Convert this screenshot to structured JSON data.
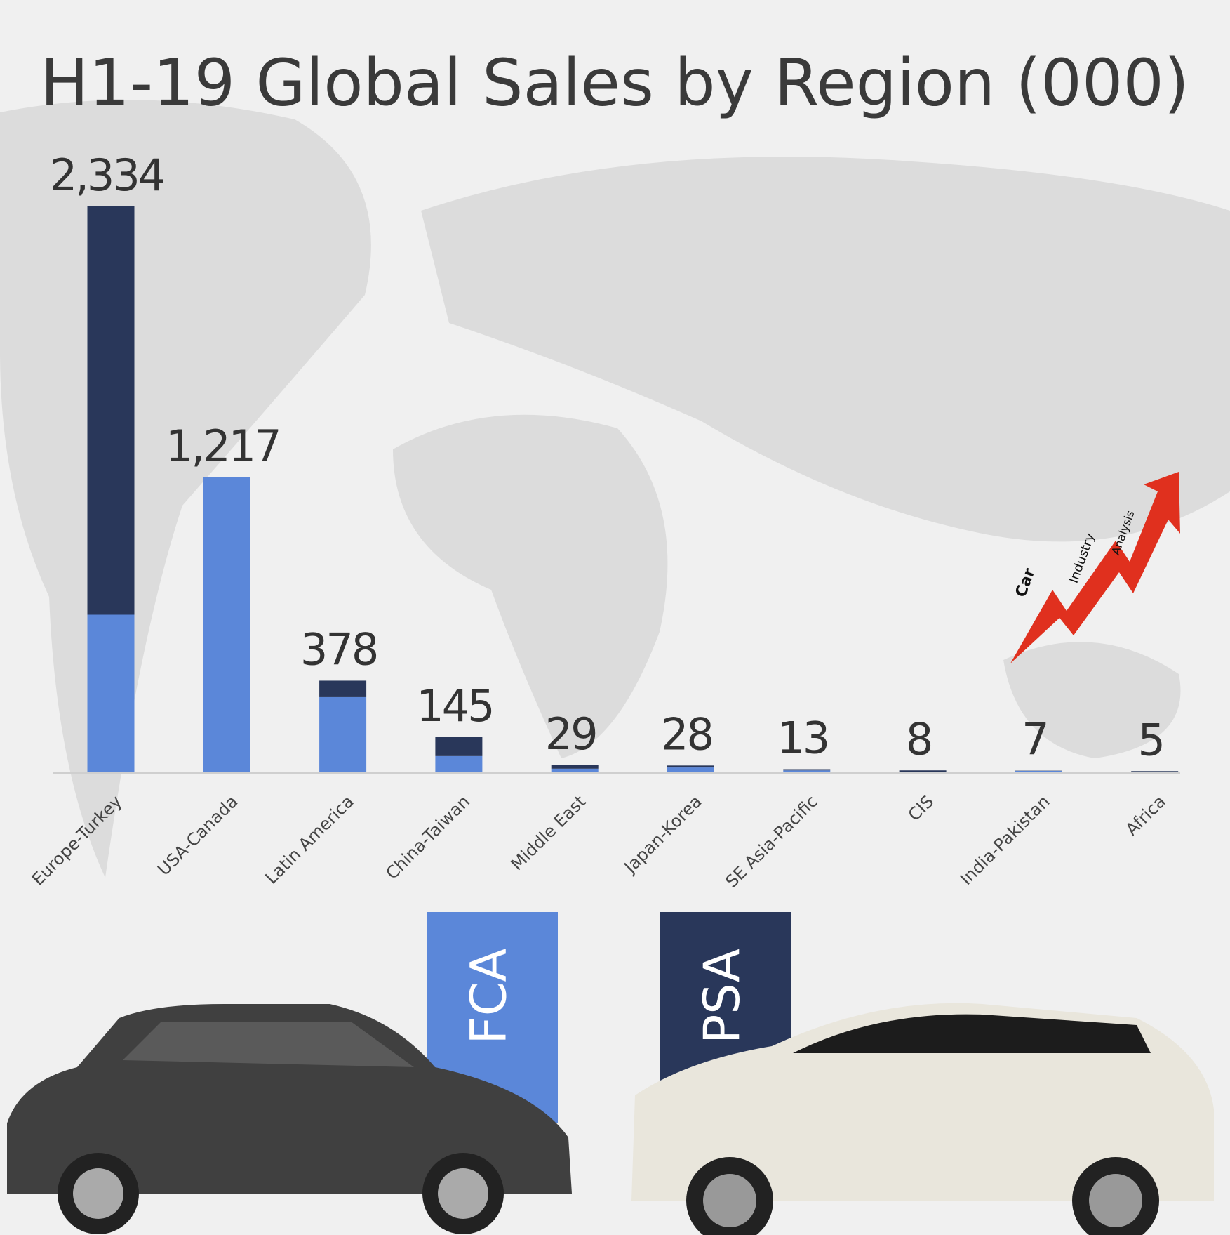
{
  "chart_data": {
    "type": "stacked-bar",
    "title": "H1-19 Global Sales by Region (000)",
    "categories": [
      "Europe-Turkey",
      "USA-Canada",
      "Latin America",
      "China-Taiwan",
      "Middle East",
      "Japan-Korea",
      "SE Asia-Pacific",
      "CIS",
      "India-Pakistan",
      "Africa"
    ],
    "series": [
      {
        "name": "FCA",
        "color": "#5b87d9",
        "values": [
          650,
          1217,
          310,
          67,
          15,
          20,
          8,
          2,
          6,
          1
        ]
      },
      {
        "name": "PSA",
        "color": "#29375a",
        "values": [
          1684,
          0,
          68,
          78,
          14,
          8,
          5,
          6,
          1,
          4
        ]
      }
    ],
    "totals": [
      2334,
      1217,
      378,
      145,
      29,
      28,
      13,
      8,
      7,
      5
    ],
    "total_labels": [
      "2,334",
      "1,217",
      "378",
      "145",
      "29",
      "28",
      "13",
      "8",
      "7",
      "5"
    ],
    "ylim": [
      0,
      2600
    ],
    "logo": [
      "Car",
      "Industry",
      "Analysis"
    ]
  }
}
